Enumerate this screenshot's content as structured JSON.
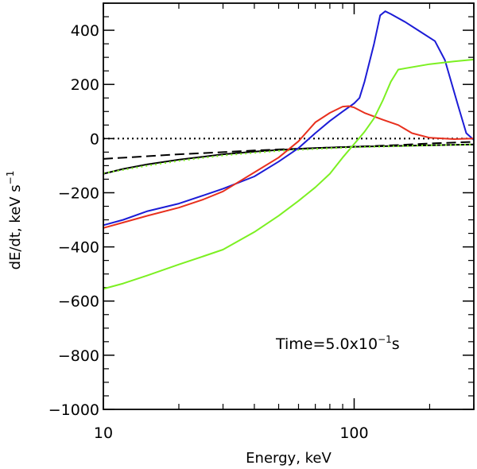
{
  "chart_data": {
    "type": "line",
    "title": "",
    "xlabel": "Energy, keV",
    "ylabel": {
      "main": "dE/dt, keV s",
      "superscript": "−1"
    },
    "xscale": "log",
    "xlim": [
      10,
      300
    ],
    "ylim": [
      -1000,
      500
    ],
    "x_ticks": [
      10,
      100
    ],
    "x_tick_labels": [
      "10",
      "100"
    ],
    "x_minor_ticks": [
      20,
      30,
      40,
      50,
      60,
      70,
      80,
      90,
      200,
      300
    ],
    "y_ticks": [
      -1000,
      -800,
      -600,
      -400,
      -200,
      0,
      200,
      400
    ],
    "y_tick_labels": [
      "−1000",
      "−800",
      "−600",
      "−400",
      "−200",
      "0",
      "200",
      "400"
    ],
    "annotation": {
      "prefix": "Time=5.0x10",
      "exponent": "−1",
      "suffix": "s",
      "position": "lower-right"
    },
    "series": [
      {
        "name": "zero line",
        "color": "#000000",
        "style": "dotted",
        "x": [
          10,
          300
        ],
        "y": [
          0,
          0
        ]
      },
      {
        "name": "black solid",
        "color": "#000000",
        "style": "solid",
        "x": [
          10,
          12,
          15,
          20,
          30,
          40,
          50,
          70,
          100,
          150,
          200,
          300
        ],
        "y": [
          -130,
          -112,
          -95,
          -78,
          -58,
          -48,
          -42,
          -35,
          -30,
          -27,
          -25,
          -22
        ]
      },
      {
        "name": "black dashed",
        "color": "#000000",
        "style": "dashed",
        "x": [
          10,
          15,
          20,
          30,
          40,
          50,
          70,
          100,
          150,
          200,
          300
        ],
        "y": [
          -75,
          -65,
          -58,
          -50,
          -44,
          -40,
          -35,
          -30,
          -24,
          -18,
          -12
        ]
      },
      {
        "name": "green dotted",
        "color": "#7cf022",
        "style": "dotted",
        "x": [
          10,
          15,
          20,
          30,
          50,
          70,
          100,
          150,
          200,
          300
        ],
        "y": [
          -128,
          -100,
          -82,
          -62,
          -45,
          -38,
          -32,
          -28,
          -25,
          -22
        ]
      },
      {
        "name": "blue",
        "color": "#1c1cd6",
        "style": "solid",
        "x": [
          10,
          12,
          15,
          20,
          25,
          30,
          40,
          50,
          60,
          70,
          80,
          90,
          100,
          105,
          110,
          120,
          127,
          133,
          140,
          160,
          180,
          210,
          230,
          260,
          280,
          300
        ],
        "y": [
          -320,
          -300,
          -268,
          -240,
          -210,
          -185,
          -140,
          -85,
          -35,
          20,
          65,
          100,
          130,
          150,
          210,
          350,
          455,
          470,
          460,
          430,
          400,
          360,
          290,
          120,
          20,
          -5
        ]
      },
      {
        "name": "red",
        "color": "#e8301e",
        "style": "solid",
        "x": [
          10,
          12,
          15,
          20,
          25,
          30,
          40,
          50,
          60,
          70,
          80,
          90,
          95,
          100,
          110,
          130,
          150,
          170,
          200,
          250,
          300
        ],
        "y": [
          -330,
          -310,
          -285,
          -255,
          -225,
          -195,
          -125,
          -70,
          -10,
          60,
          95,
          118,
          120,
          115,
          95,
          70,
          50,
          20,
          3,
          -2,
          0
        ]
      },
      {
        "name": "green",
        "color": "#7cf022",
        "style": "solid",
        "x": [
          10,
          12,
          15,
          20,
          25,
          30,
          40,
          50,
          60,
          70,
          80,
          90,
          100,
          110,
          120,
          130,
          140,
          150,
          200,
          250,
          300
        ],
        "y": [
          -555,
          -535,
          -505,
          -465,
          -435,
          -410,
          -345,
          -285,
          -230,
          -180,
          -130,
          -70,
          -20,
          25,
          75,
          140,
          210,
          255,
          275,
          285,
          292
        ]
      }
    ]
  }
}
